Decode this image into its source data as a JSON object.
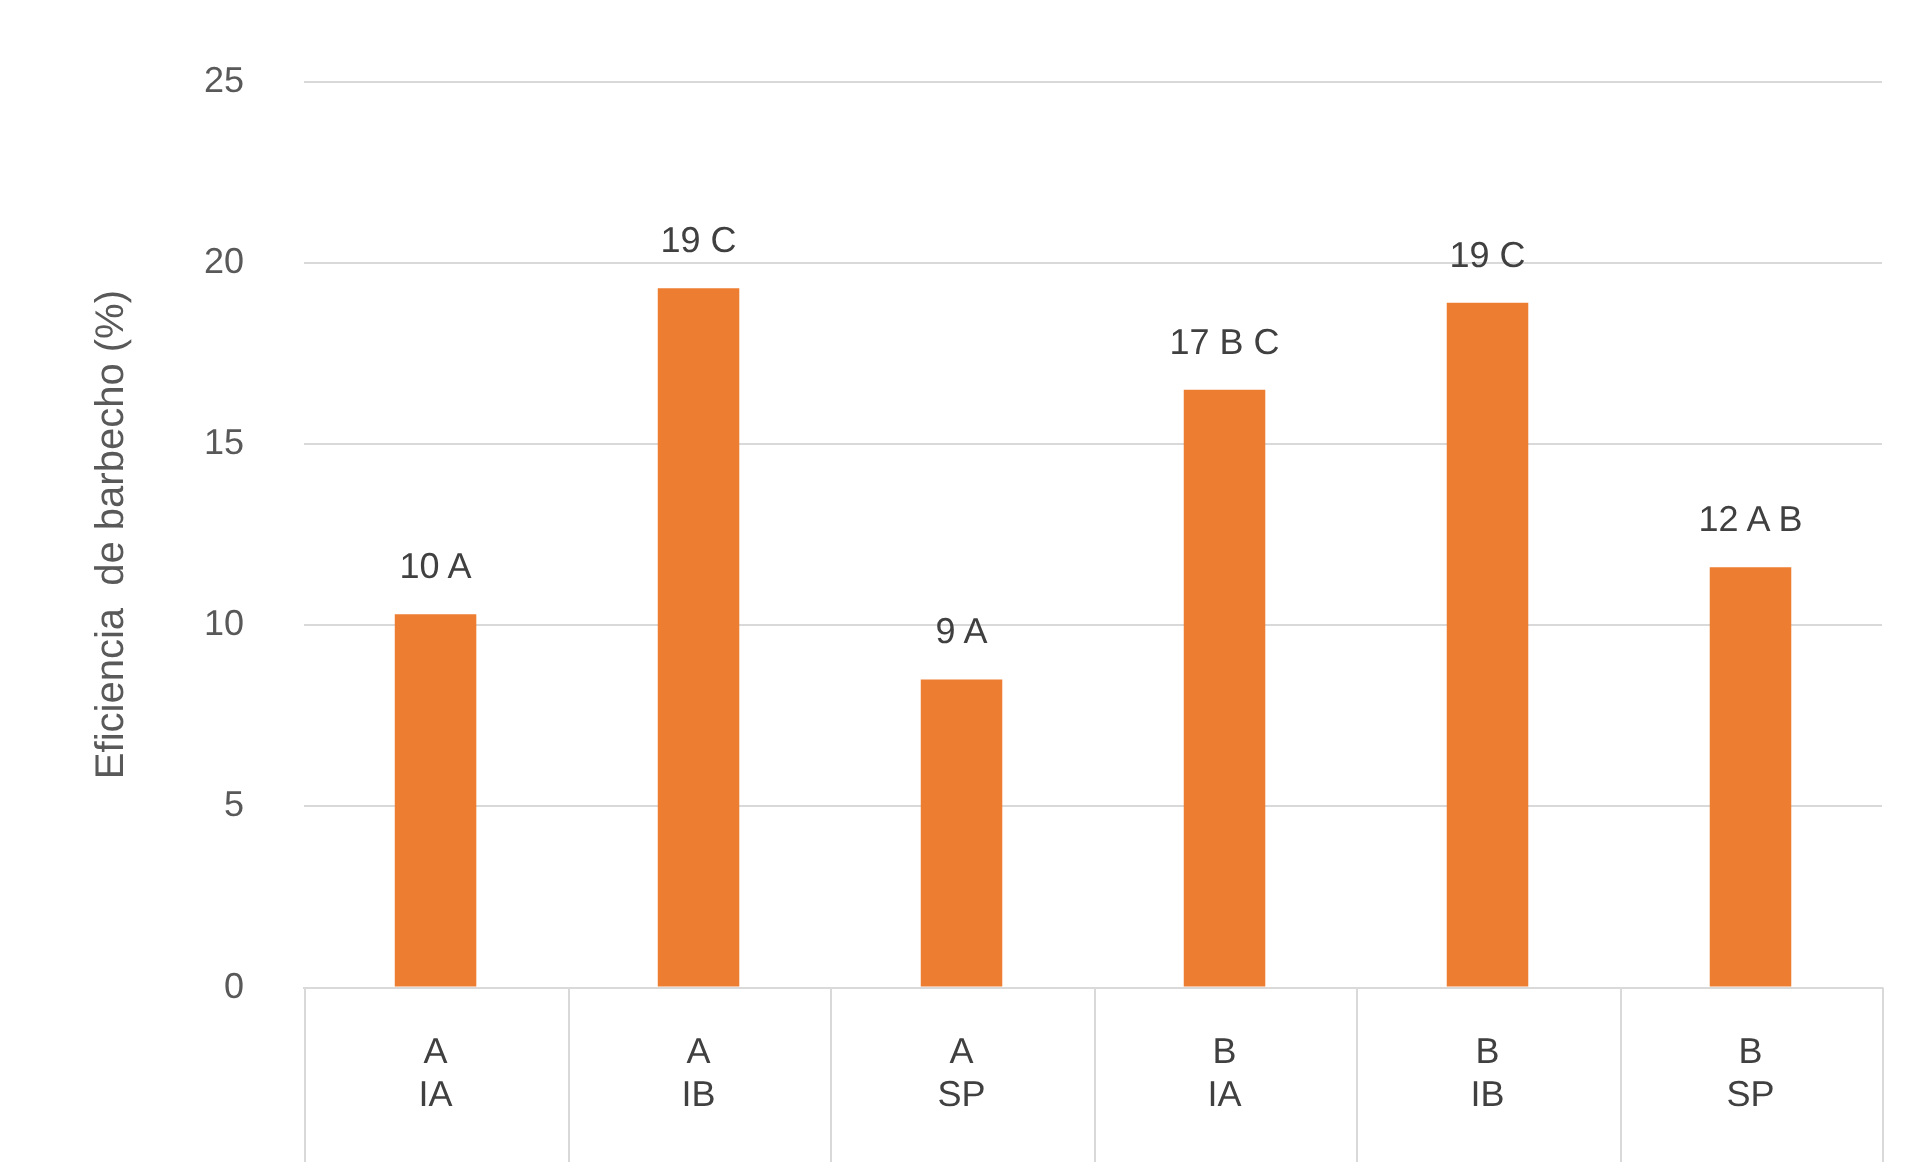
{
  "chart_data": {
    "type": "bar",
    "ylabel": "Eficiencia  de barbecho (%)",
    "categories": [
      "A\nIA",
      "A\nIB",
      "A\nSP",
      "B\nIA",
      "B\nIB",
      "B\nSP"
    ],
    "values": [
      10.3,
      19.3,
      8.5,
      16.5,
      18.9,
      11.6
    ],
    "value_labels": [
      "10 A",
      "19 C",
      "9 A",
      "17 B C",
      "19 C",
      "12 A B"
    ],
    "color": "#ed7d31",
    "ylim": [
      0,
      25
    ],
    "yticks": [
      0,
      5,
      10,
      15,
      20,
      25
    ],
    "grid": "y",
    "legend": false
  }
}
